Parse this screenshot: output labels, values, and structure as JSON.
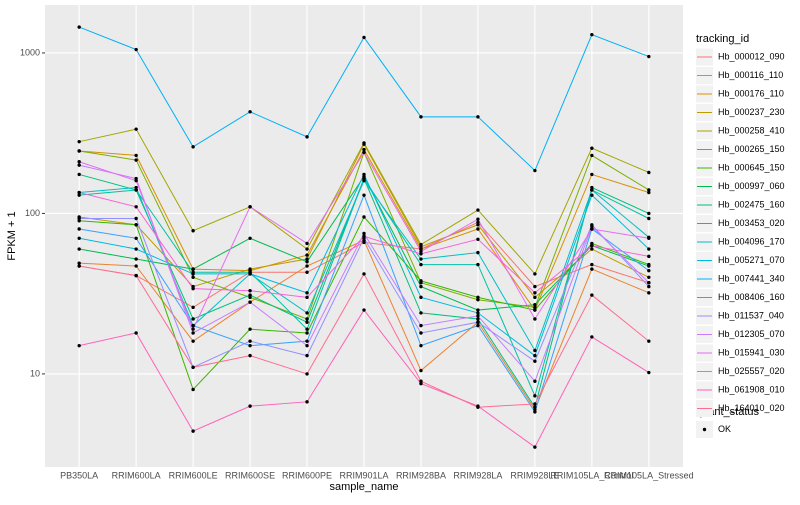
{
  "chart_data": {
    "type": "line",
    "x_label": "sample_name",
    "y_label": "FPKM + 1",
    "categories": [
      "PB350LA",
      "RRIM600LA",
      "RRIM600LE",
      "RRIM600SE",
      "RRIM600PE",
      "RRIM901LA",
      "RRIM928BA",
      "RRIM928LA",
      "RRIM928LE",
      "RRIM105LA_Control",
      "RRIM105LA_Stressed"
    ],
    "log_y": true,
    "grid": true,
    "ylim": [
      2.63,
      1990
    ],
    "yticks": [
      10,
      100,
      1000
    ],
    "legend_title": "tracking_id",
    "legend_position": "right",
    "point_legend_title": "quant_status",
    "point_legend_label": "OK",
    "point_color": "#000000",
    "series": [
      {
        "name": "Hb_000012_090",
        "color": "#F8766D",
        "values": [
          47,
          41,
          26,
          43,
          43,
          66,
          60,
          88,
          35,
          48,
          37
        ]
      },
      {
        "name": "Hb_000116_110",
        "color": "#EA8331",
        "values": [
          49,
          47,
          16,
          28,
          47,
          68,
          10.5,
          21,
          6,
          45,
          32
        ]
      },
      {
        "name": "Hb_000176_110",
        "color": "#D89000",
        "values": [
          245,
          230,
          45,
          44,
          55,
          250,
          60,
          80,
          25,
          175,
          135
        ]
      },
      {
        "name": "Hb_000237_230",
        "color": "#C09B00",
        "values": [
          95,
          85,
          35,
          45,
          52,
          270,
          62,
          85,
          30,
          60,
          40
        ]
      },
      {
        "name": "Hb_000258_410",
        "color": "#A3A500",
        "values": [
          280,
          335,
          78,
          110,
          60,
          275,
          64,
          105,
          42,
          255,
          180
        ]
      },
      {
        "name": "Hb_000265_150",
        "color": "#7CAE00",
        "values": [
          245,
          215,
          40,
          30,
          22,
          240,
          37,
          29,
          26,
          230,
          140
        ]
      },
      {
        "name": "Hb_000645_150",
        "color": "#39B600",
        "values": [
          90,
          85,
          8,
          19,
          18,
          95,
          38,
          30,
          25,
          65,
          48
        ]
      },
      {
        "name": "Hb_000997_060",
        "color": "#00BB4E",
        "values": [
          60,
          52,
          45,
          70,
          50,
          170,
          35,
          25,
          27,
          63,
          47
        ]
      },
      {
        "name": "Hb_002475_160",
        "color": "#00BF7D",
        "values": [
          175,
          140,
          22,
          31,
          21,
          165,
          24,
          22,
          6.2,
          145,
          100
        ]
      },
      {
        "name": "Hb_003453_020",
        "color": "#00C1A3",
        "values": [
          130,
          140,
          43,
          43,
          19,
          165,
          48,
          48,
          7.3,
          140,
          93
        ]
      },
      {
        "name": "Hb_004096_170",
        "color": "#00BFC4",
        "values": [
          135,
          145,
          20,
          42,
          24,
          160,
          52,
          57,
          14,
          140,
          71
        ]
      },
      {
        "name": "Hb_005271_070",
        "color": "#00BAE0",
        "values": [
          70,
          60,
          42,
          42,
          32,
          175,
          30,
          24,
          13,
          130,
          60
        ]
      },
      {
        "name": "Hb_007441_340",
        "color": "#00B0F6",
        "values": [
          1450,
          1050,
          260,
          430,
          300,
          1250,
          400,
          400,
          185,
          1300,
          950
        ]
      },
      {
        "name": "Hb_008406_160",
        "color": "#35A2FF",
        "values": [
          80,
          70,
          20,
          15,
          16,
          130,
          15,
          20,
          5.8,
          80,
          44
        ]
      },
      {
        "name": "Hb_011537_040",
        "color": "#9590FF",
        "values": [
          93,
          93,
          11,
          16,
          13,
          70,
          18,
          21,
          12,
          85,
          35
        ]
      },
      {
        "name": "Hb_012305_070",
        "color": "#C77CFF",
        "values": [
          200,
          165,
          18,
          28,
          15,
          75,
          20,
          23,
          9,
          83,
          37
        ]
      },
      {
        "name": "Hb_015941_030",
        "color": "#E76BF3",
        "values": [
          210,
          160,
          19,
          110,
          65,
          240,
          58,
          92,
          22,
          80,
          70
        ]
      },
      {
        "name": "Hb_025557_020",
        "color": "#FA62DB",
        "values": [
          135,
          110,
          34,
          33,
          30,
          72,
          56,
          69,
          32,
          63,
          54
        ]
      },
      {
        "name": "Hb_061908_010",
        "color": "#FF62BC",
        "values": [
          15,
          18,
          4.4,
          6.3,
          6.7,
          25,
          8.7,
          6.3,
          3.5,
          17,
          10.2
        ]
      },
      {
        "name": "Hb_164010_020",
        "color": "#FF6C91",
        "values": [
          47,
          41,
          11,
          13,
          10,
          42,
          9,
          6.2,
          6.5,
          31,
          16
        ]
      }
    ]
  }
}
